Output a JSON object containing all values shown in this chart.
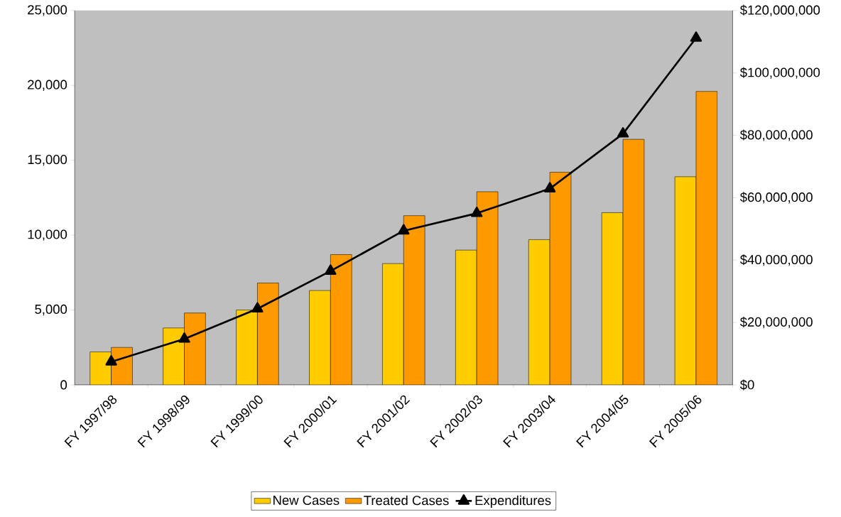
{
  "chart_data": {
    "type": "bar",
    "categories": [
      "FY 1997/98",
      "FY 1998/99",
      "FY 1999/00",
      "FY 2000/01",
      "FY 2001/02",
      "FY 2002/03",
      "FY 2003/04",
      "FY 2004/05",
      "FY 2005/06"
    ],
    "series": [
      {
        "name": "New Cases",
        "color": "#ffcc00",
        "values": [
          2200,
          3800,
          5000,
          6300,
          8100,
          9000,
          9700,
          11500,
          13900
        ]
      },
      {
        "name": "Treated Cases",
        "color": "#ff9900",
        "values": [
          2500,
          4800,
          6800,
          8700,
          11300,
          12900,
          14200,
          16400,
          19600
        ]
      },
      {
        "name": "Expenditures",
        "type": "line",
        "axis": "y2",
        "color": "#000000",
        "marker": "triangle",
        "values": [
          7400000,
          14700000,
          24400000,
          36500000,
          49400000,
          55000000,
          62900000,
          80500000,
          111200000
        ]
      }
    ],
    "ylim": [
      0,
      25000
    ],
    "yticks": [
      0,
      {
        "value": 5000,
        "label": "5,000"
      },
      {
        "value": 10000,
        "label": "10,000"
      },
      {
        "value": 15000,
        "label": "15,000"
      },
      {
        "value": 20000,
        "label": "20,000"
      },
      {
        "value": 25000,
        "label": "25,000"
      }
    ],
    "y2lim": [
      0,
      120000000
    ],
    "y2ticks": [
      {
        "value": 0,
        "label": "$0"
      },
      {
        "value": 20000000,
        "label": "$20,000,000"
      },
      {
        "value": 40000000,
        "label": "$40,000,000"
      },
      {
        "value": 60000000,
        "label": "$60,000,000"
      },
      {
        "value": 80000000,
        "label": "$80,000,000"
      },
      {
        "value": 100000000,
        "label": "$100,000,000"
      },
      {
        "value": 120000000,
        "label": "$120,000,000"
      }
    ],
    "grid": false,
    "legend": "bottom"
  }
}
